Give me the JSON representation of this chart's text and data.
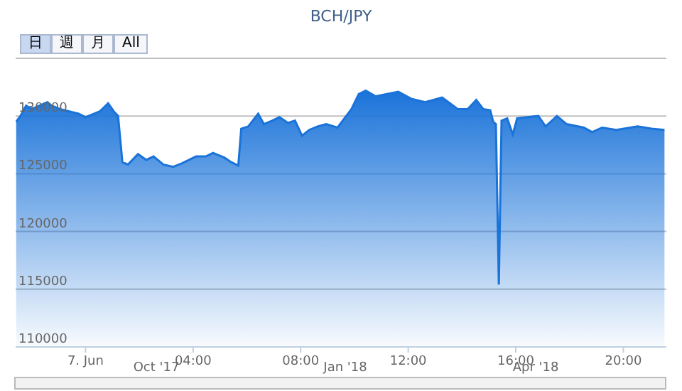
{
  "chart_data": {
    "type": "area",
    "title": "BCH/JPY",
    "x": [
      -2.58,
      -2.42,
      -2.21,
      -2.0,
      -1.42,
      -1.26,
      -0.95,
      -0.26,
      0,
      0.53,
      0.84,
      1.05,
      1.21,
      1.37,
      1.58,
      1.95,
      2.26,
      2.53,
      2.89,
      3.26,
      3.58,
      4.11,
      4.47,
      4.74,
      5.16,
      5.42,
      5.68,
      5.79,
      6.05,
      6.42,
      6.63,
      6.95,
      7.21,
      7.53,
      7.79,
      8.05,
      8.32,
      8.63,
      8.95,
      9.37,
      9.89,
      10.16,
      10.42,
      10.79,
      11.63,
      12.11,
      12.63,
      13.26,
      13.84,
      14.21,
      14.53,
      14.79,
      15.05,
      15.16,
      15.26,
      15.37,
      15.47,
      15.68,
      15.89,
      16.05,
      16.84,
      17.11,
      17.53,
      17.89,
      18.53,
      18.84,
      19.21,
      19.74,
      20.53,
      21.05,
      21.53
    ],
    "series": [
      {
        "color": "#1a73d9",
        "values": [
          129500,
          130000,
          130900,
          130600,
          131200,
          130900,
          130600,
          130200,
          129900,
          130400,
          131100,
          130400,
          130000,
          126000,
          125800,
          126700,
          126200,
          126500,
          125800,
          125600,
          125900,
          126500,
          126500,
          126800,
          126400,
          126000,
          125700,
          128900,
          129100,
          130200,
          129300,
          129600,
          129900,
          129400,
          129600,
          128300,
          128800,
          129100,
          129300,
          129000,
          130600,
          131900,
          132200,
          131700,
          132100,
          131500,
          131200,
          131600,
          130600,
          130600,
          131400,
          130600,
          130500,
          129500,
          129300,
          115400,
          129600,
          129800,
          128400,
          129800,
          130000,
          129100,
          130000,
          129300,
          129000,
          128600,
          129000,
          128800,
          129100,
          128900,
          128800
        ]
      }
    ],
    "xlim": [
      -2.6,
      21.6
    ],
    "xticks": [
      {
        "value": 0,
        "label": "7. Jun"
      },
      {
        "value": 4,
        "label": "04:00"
      },
      {
        "value": 8,
        "label": "08:00"
      },
      {
        "value": 12,
        "label": "12:00"
      },
      {
        "value": 16,
        "label": "16:00"
      },
      {
        "value": 20,
        "label": "20:00"
      }
    ],
    "ylim": [
      110000,
      135000
    ],
    "yticks": [
      110000,
      115000,
      120000,
      125000,
      130000,
      {
        "value": 135000,
        "label": null
      }
    ],
    "grid": "y",
    "annotations": [
      "日",
      "週",
      "月",
      "All",
      "Oct '17",
      "Jan '18",
      "Apr '18"
    ]
  }
}
